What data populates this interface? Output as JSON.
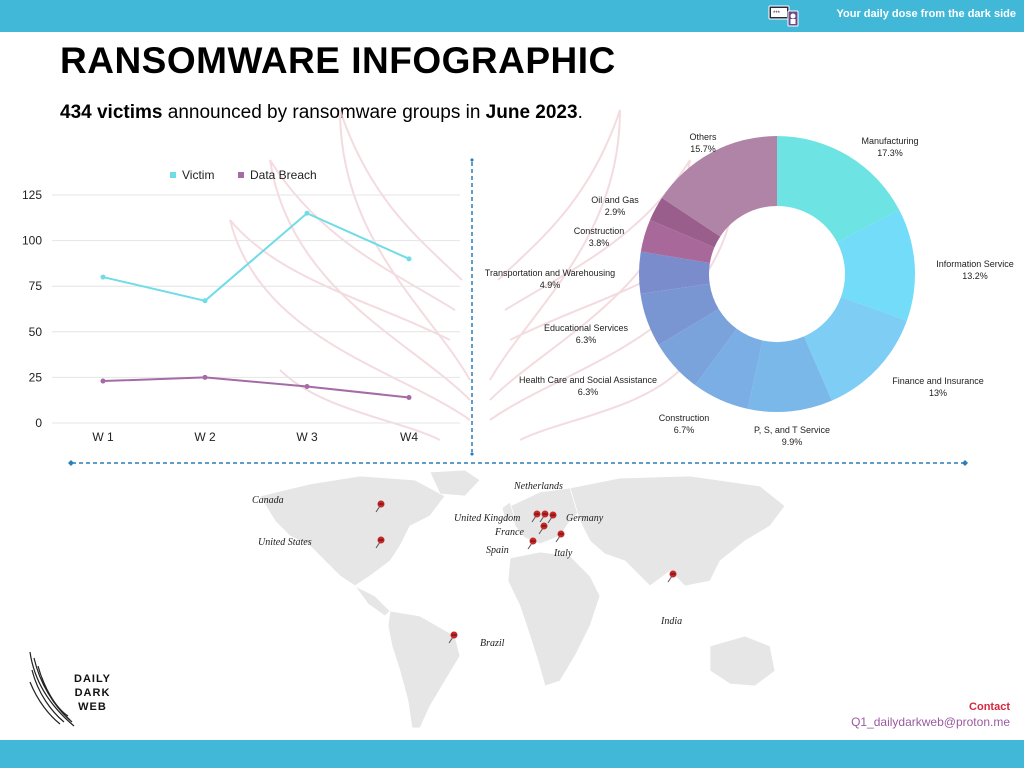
{
  "header": {
    "tagline": "Your daily dose from the dark side"
  },
  "title": "RANSOMWARE INFOGRAPHIC",
  "subtitle": {
    "count": "434 victims",
    "middle": " announced by ransomware groups in ",
    "period": "June 2023",
    "end": "."
  },
  "chart_data": [
    {
      "type": "line",
      "categories": [
        "W 1",
        "W 2",
        "W 3",
        "W4"
      ],
      "series": [
        {
          "name": "Victim",
          "values": [
            80,
            67,
            115,
            90
          ],
          "color": "#6fdce6"
        },
        {
          "name": "Data Breach",
          "values": [
            23,
            25,
            20,
            14
          ],
          "color": "#a46ba6"
        }
      ],
      "ylim": [
        0,
        125
      ],
      "yticks": [
        0,
        25,
        50,
        75,
        100,
        125
      ],
      "grid": true,
      "legend": "top"
    },
    {
      "type": "pie",
      "donut": true,
      "slices": [
        {
          "label": "Manufacturing",
          "value": "17.3%",
          "pct": 17.3,
          "color": "#6ee3e3"
        },
        {
          "label": "Information Service",
          "value": "13.2%",
          "pct": 13.2,
          "color": "#72dcf9"
        },
        {
          "label": "Finance and Insurance",
          "value": "13%",
          "pct": 13.0,
          "color": "#7ecdf4"
        },
        {
          "label": "P, S, and T Service",
          "value": "9.9%",
          "pct": 9.9,
          "color": "#7ab8ea"
        },
        {
          "label": "Construction",
          "value": "6.7%",
          "pct": 6.7,
          "color": "#7aaee4"
        },
        {
          "label": "Health Care and Social Assistance",
          "value": "6.3%",
          "pct": 6.3,
          "color": "#7aa3dc"
        },
        {
          "label": "Educational Services",
          "value": "6.3%",
          "pct": 6.3,
          "color": "#7a96d2"
        },
        {
          "label": "Transportation and Warehousing",
          "value": "4.9%",
          "pct": 4.9,
          "color": "#7a8ccb"
        },
        {
          "label": "Construction",
          "value": "3.8%",
          "pct": 3.8,
          "color": "#a8699a"
        },
        {
          "label": "Oil and Gas",
          "value": "2.9%",
          "pct": 2.9,
          "color": "#9a5e8c"
        },
        {
          "label": "Others",
          "value": "15.7%",
          "pct": 15.7,
          "color": "#b084a6"
        }
      ]
    }
  ],
  "map": {
    "countries": [
      {
        "name": "Canada"
      },
      {
        "name": "United States"
      },
      {
        "name": "Netherlands"
      },
      {
        "name": "United Kingdom"
      },
      {
        "name": "Germany"
      },
      {
        "name": "France"
      },
      {
        "name": "Spain"
      },
      {
        "name": "Italy"
      },
      {
        "name": "India"
      },
      {
        "name": "Brazil"
      }
    ]
  },
  "brand": {
    "line1": "DAILY",
    "line2": "DARK",
    "line3": "WEB"
  },
  "contact": {
    "label": "Contact",
    "email": "Q1_dailydarkweb@proton.me"
  },
  "icons": {
    "header": "hacker-laptop-icon",
    "brand": "wing-logo-icon",
    "pin": "map-pin-icon"
  }
}
